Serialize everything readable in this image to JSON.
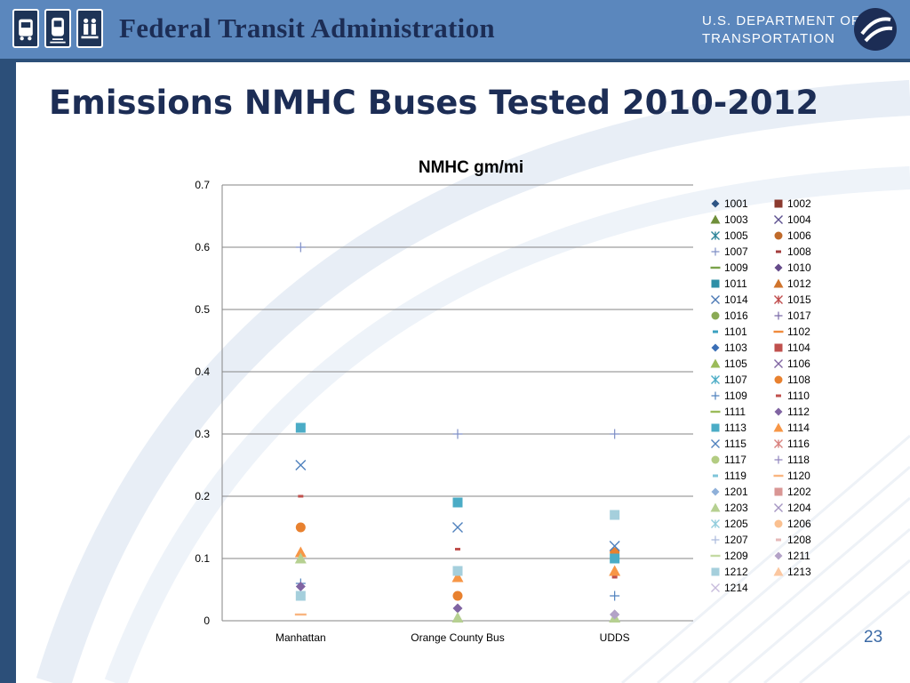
{
  "header": {
    "org_title": "Federal Transit Administration",
    "dept_line1": "U.S. DEPARTMENT OF",
    "dept_line2": "TRANSPORTATION"
  },
  "slide": {
    "title": "Emissions NMHC Buses Tested 2010-2012",
    "page_number": "23"
  },
  "chart_data": {
    "type": "scatter",
    "title": "NMHC gm/mi",
    "categories": [
      "Manhattan",
      "Orange County Bus",
      "UDDS"
    ],
    "ylim": [
      0,
      0.7
    ],
    "yticks": [
      "0",
      "0.1",
      "0.2",
      "0.3",
      "0.4",
      "0.5",
      "0.6",
      "0.7"
    ],
    "grid": true,
    "legend_position": "right",
    "series": [
      {
        "name": "1001",
        "values": [
          null,
          null,
          null
        ]
      },
      {
        "name": "1002",
        "values": [
          null,
          null,
          null
        ]
      },
      {
        "name": "1003",
        "values": [
          null,
          null,
          null
        ]
      },
      {
        "name": "1004",
        "values": [
          null,
          null,
          null
        ]
      },
      {
        "name": "1005",
        "values": [
          null,
          null,
          null
        ]
      },
      {
        "name": "1006",
        "values": [
          null,
          null,
          null
        ]
      },
      {
        "name": "1007",
        "values": [
          0.6,
          0.3,
          0.3
        ]
      },
      {
        "name": "1008",
        "values": [
          null,
          null,
          null
        ]
      },
      {
        "name": "1009",
        "values": [
          null,
          null,
          null
        ]
      },
      {
        "name": "1010",
        "values": [
          null,
          null,
          null
        ]
      },
      {
        "name": "1011",
        "values": [
          null,
          null,
          null
        ]
      },
      {
        "name": "1012",
        "values": [
          null,
          null,
          null
        ]
      },
      {
        "name": "1014",
        "values": [
          null,
          null,
          null
        ]
      },
      {
        "name": "1015",
        "values": [
          null,
          null,
          null
        ]
      },
      {
        "name": "1016",
        "values": [
          null,
          null,
          null
        ]
      },
      {
        "name": "1017",
        "values": [
          null,
          null,
          null
        ]
      },
      {
        "name": "1101",
        "values": [
          null,
          null,
          null
        ]
      },
      {
        "name": "1102",
        "values": [
          null,
          null,
          null
        ]
      },
      {
        "name": "1103",
        "values": [
          null,
          null,
          null
        ]
      },
      {
        "name": "1104",
        "values": [
          null,
          null,
          null
        ]
      },
      {
        "name": "1105",
        "values": [
          null,
          null,
          null
        ]
      },
      {
        "name": "1106",
        "values": [
          null,
          null,
          null
        ]
      },
      {
        "name": "1107",
        "values": [
          null,
          null,
          null
        ]
      },
      {
        "name": "1108",
        "values": [
          0.15,
          0.04,
          0.11
        ]
      },
      {
        "name": "1109",
        "values": [
          0.06,
          null,
          0.04
        ]
      },
      {
        "name": "1110",
        "values": [
          0.2,
          0.115,
          0.07
        ]
      },
      {
        "name": "1111",
        "values": [
          null,
          null,
          null
        ]
      },
      {
        "name": "1112",
        "values": [
          0.055,
          0.02,
          0.01
        ]
      },
      {
        "name": "1113",
        "values": [
          0.31,
          0.19,
          0.1
        ]
      },
      {
        "name": "1114",
        "values": [
          0.11,
          0.07,
          0.08
        ]
      },
      {
        "name": "1115",
        "values": [
          0.25,
          0.15,
          0.12
        ]
      },
      {
        "name": "1116",
        "values": [
          null,
          null,
          null
        ]
      },
      {
        "name": "1117",
        "values": [
          null,
          null,
          null
        ]
      },
      {
        "name": "1118",
        "values": [
          null,
          null,
          null
        ]
      },
      {
        "name": "1119",
        "values": [
          null,
          null,
          null
        ]
      },
      {
        "name": "1120",
        "values": [
          0.01,
          null,
          null
        ]
      },
      {
        "name": "1201",
        "values": [
          null,
          null,
          null
        ]
      },
      {
        "name": "1202",
        "values": [
          null,
          null,
          null
        ]
      },
      {
        "name": "1203",
        "values": [
          0.1,
          0.005,
          0.005
        ]
      },
      {
        "name": "1204",
        "values": [
          null,
          null,
          null
        ]
      },
      {
        "name": "1205",
        "values": [
          null,
          null,
          null
        ]
      },
      {
        "name": "1206",
        "values": [
          null,
          null,
          null
        ]
      },
      {
        "name": "1207",
        "values": [
          null,
          null,
          null
        ]
      },
      {
        "name": "1208",
        "values": [
          null,
          null,
          null
        ]
      },
      {
        "name": "1209",
        "values": [
          null,
          null,
          null
        ]
      },
      {
        "name": "1211",
        "values": [
          null,
          null,
          0.01
        ]
      },
      {
        "name": "1212",
        "values": [
          0.04,
          0.08,
          0.17
        ]
      },
      {
        "name": "1213",
        "values": [
          null,
          null,
          null
        ]
      },
      {
        "name": "1214",
        "values": [
          null,
          null,
          null
        ]
      }
    ]
  },
  "marker_styles": {
    "1001": {
      "shape": "diamond",
      "color": "#2e5585"
    },
    "1002": {
      "shape": "square",
      "color": "#8b3a2f"
    },
    "1003": {
      "shape": "triangle",
      "color": "#6f8f3a"
    },
    "1004": {
      "shape": "x",
      "color": "#5b4f8f"
    },
    "1005": {
      "shape": "asterisk",
      "color": "#2e8599"
    },
    "1006": {
      "shape": "circle",
      "color": "#c06a2a"
    },
    "1007": {
      "shape": "plus",
      "color": "#7f8fc6"
    },
    "1008": {
      "shape": "dash",
      "color": "#a33c3c"
    },
    "1009": {
      "shape": "line",
      "color": "#7aa24a"
    },
    "1010": {
      "shape": "diamond",
      "color": "#654b8a"
    },
    "1011": {
      "shape": "square",
      "color": "#2e8fa6"
    },
    "1012": {
      "shape": "triangle",
      "color": "#d0742c"
    },
    "1014": {
      "shape": "x",
      "color": "#4a78b4"
    },
    "1015": {
      "shape": "asterisk",
      "color": "#c04b4b"
    },
    "1016": {
      "shape": "circle",
      "color": "#8aaa55"
    },
    "1017": {
      "shape": "plus",
      "color": "#7a6aa8"
    },
    "1101": {
      "shape": "dash",
      "color": "#3aa0c0"
    },
    "1102": {
      "shape": "line",
      "color": "#f08a3c"
    },
    "1103": {
      "shape": "diamond",
      "color": "#3b6fb6"
    },
    "1104": {
      "shape": "square",
      "color": "#c0504d"
    },
    "1105": {
      "shape": "triangle",
      "color": "#9bbb59"
    },
    "1106": {
      "shape": "x",
      "color": "#8064a2"
    },
    "1107": {
      "shape": "asterisk",
      "color": "#4bacc6"
    },
    "1108": {
      "shape": "circle",
      "color": "#e8812f"
    },
    "1109": {
      "shape": "plus",
      "color": "#4f81bd"
    },
    "1110": {
      "shape": "dash",
      "color": "#c0504d"
    },
    "1111": {
      "shape": "line",
      "color": "#9bbb59"
    },
    "1112": {
      "shape": "diamond",
      "color": "#8064a2"
    },
    "1113": {
      "shape": "square",
      "color": "#4bacc6"
    },
    "1114": {
      "shape": "triangle",
      "color": "#f79646"
    },
    "1115": {
      "shape": "x",
      "color": "#4f81bd"
    },
    "1116": {
      "shape": "asterisk",
      "color": "#d9827f"
    },
    "1117": {
      "shape": "circle",
      "color": "#b3cc82"
    },
    "1118": {
      "shape": "plus",
      "color": "#8f84bd"
    },
    "1119": {
      "shape": "dash",
      "color": "#7fc5d9"
    },
    "1120": {
      "shape": "line",
      "color": "#f9b57f"
    },
    "1201": {
      "shape": "diamond",
      "color": "#8fb0d9"
    },
    "1202": {
      "shape": "square",
      "color": "#d99694"
    },
    "1203": {
      "shape": "triangle",
      "color": "#b6d091"
    },
    "1204": {
      "shape": "x",
      "color": "#a595c2"
    },
    "1205": {
      "shape": "asterisk",
      "color": "#92cddc"
    },
    "1206": {
      "shape": "circle",
      "color": "#fac090"
    },
    "1207": {
      "shape": "plus",
      "color": "#a9b9dc"
    },
    "1208": {
      "shape": "dash",
      "color": "#e6b9b8"
    },
    "1209": {
      "shape": "line",
      "color": "#c4d9a3"
    },
    "1211": {
      "shape": "diamond",
      "color": "#b3a2c7"
    },
    "1212": {
      "shape": "square",
      "color": "#a5cfdc"
    },
    "1213": {
      "shape": "triangle",
      "color": "#fbc7a0"
    },
    "1214": {
      "shape": "x",
      "color": "#c7bcdc"
    }
  }
}
